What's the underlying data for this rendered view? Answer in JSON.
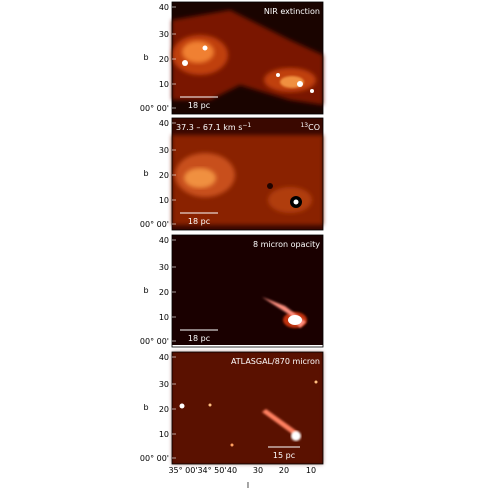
{
  "panels": [
    {
      "label": "NIR extinction",
      "scale": "18 pc"
    },
    {
      "velocity": "37.3 – 67.1 km s",
      "velocity_exp": "−1",
      "tracer_iso": "13",
      "tracer": "CO",
      "scale": "18 pc"
    },
    {
      "label": "8 micron opacity",
      "scale": "18 pc"
    },
    {
      "label": "ATLASGAL/870 micron",
      "scale": "15 pc"
    }
  ],
  "y_axis": {
    "label": "b",
    "ticks": [
      "40",
      "30",
      "20",
      "10",
      "00° 00'"
    ]
  },
  "x_axis": {
    "label": "l",
    "ticks": [
      "35° 00'",
      "34° 50'",
      "40",
      "30",
      "20",
      "10"
    ]
  }
}
